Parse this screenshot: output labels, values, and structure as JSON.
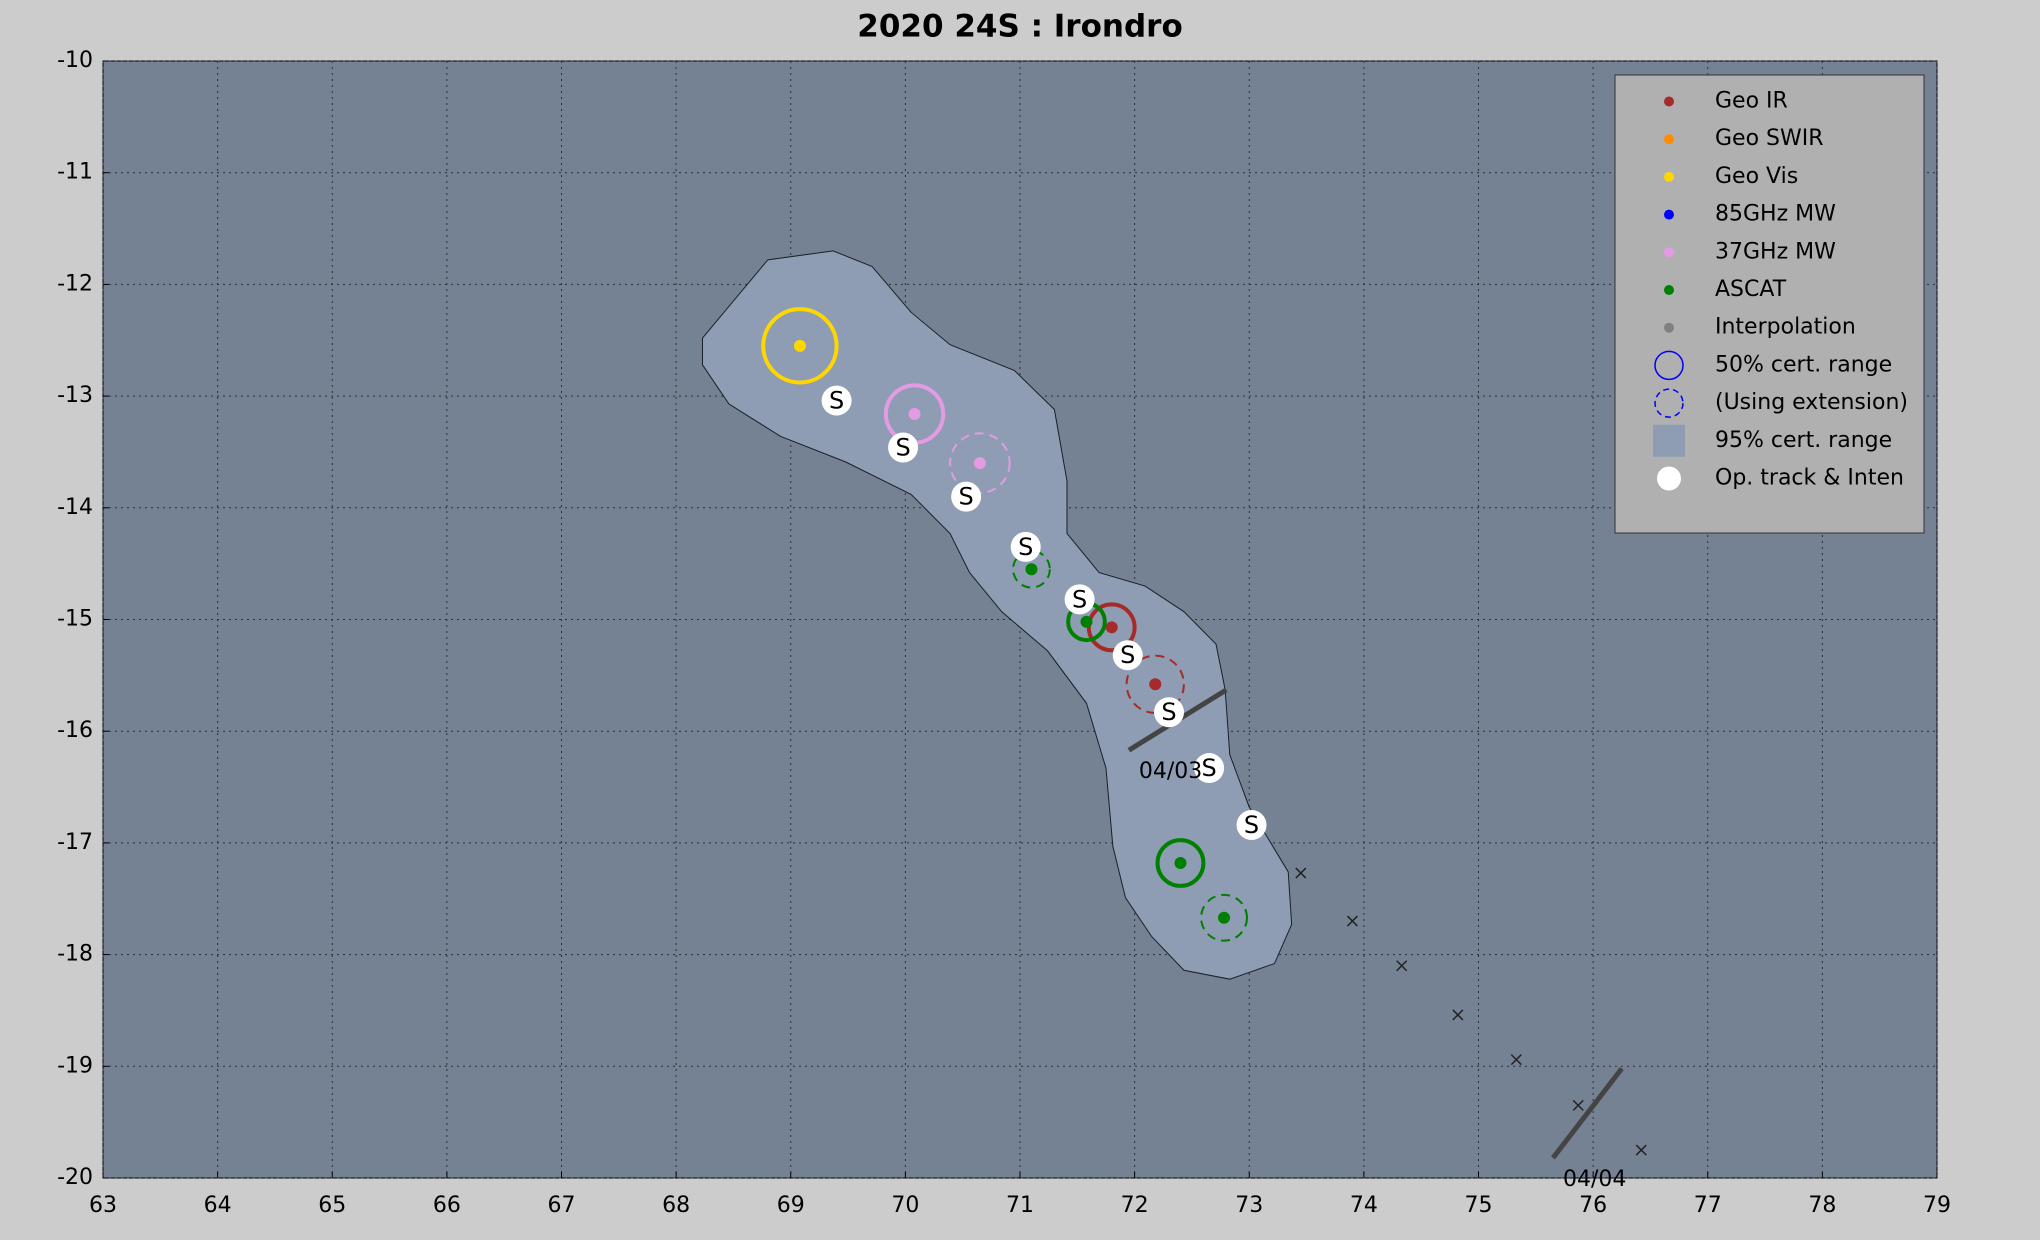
{
  "chart_data": {
    "type": "track",
    "title": "2020  24S :  Irondro",
    "xlim": [
      63,
      79
    ],
    "ylim": [
      -20,
      -10
    ],
    "xticks": [
      63,
      64,
      65,
      66,
      67,
      68,
      69,
      70,
      71,
      72,
      73,
      74,
      75,
      76,
      77,
      78,
      79
    ],
    "yticks": [
      -10,
      -11,
      -12,
      -13,
      -14,
      -15,
      -16,
      -17,
      -18,
      -19,
      -20
    ],
    "grid": true,
    "legend": "upper right",
    "series": [
      {
        "name": "Geo IR",
        "color": "#a52a2a",
        "symbol": "dot",
        "x": [
          71.8,
          72.18
        ],
        "values": [
          -15.07,
          -15.58
        ],
        "radius": [
          0.2,
          0.25
        ],
        "dashed": [
          false,
          true
        ]
      },
      {
        "name": "Geo SWIR",
        "color": "#ff8c00",
        "symbol": "dot",
        "x": [],
        "values": [],
        "radius": [],
        "dashed": []
      },
      {
        "name": "Geo Vis",
        "color": "#ffd700",
        "symbol": "dot",
        "x": [
          69.08
        ],
        "values": [
          -12.55
        ],
        "radius": [
          0.32
        ],
        "dashed": [
          false
        ]
      },
      {
        "name": "85GHz MW",
        "color": "#0000ff",
        "symbol": "dot",
        "x": [],
        "values": [],
        "radius": [],
        "dashed": []
      },
      {
        "name": "37GHz MW",
        "color": "#e39be3",
        "symbol": "dot",
        "x": [
          70.08,
          70.65
        ],
        "values": [
          -13.16,
          -13.6
        ],
        "radius": [
          0.25,
          0.26
        ],
        "dashed": [
          false,
          true
        ]
      },
      {
        "name": "ASCAT",
        "color": "#008000",
        "symbol": "dot",
        "x": [
          71.1,
          71.58,
          72.4,
          72.78
        ],
        "values": [
          -14.55,
          -15.02,
          -17.18,
          -17.67
        ],
        "radius": [
          0.16,
          0.16,
          0.2,
          0.2
        ],
        "dashed": [
          true,
          false,
          false,
          true
        ]
      },
      {
        "name": "Interpolation",
        "color": "#808080",
        "symbol": "dot",
        "x": [],
        "values": [],
        "radius": [],
        "dashed": []
      },
      {
        "name": "50% cert. range",
        "color": "#0000ff",
        "symbol": "circle",
        "x": [],
        "values": []
      },
      {
        "name": "(Using extension)",
        "color": "#0000ff",
        "symbol": "dashed-circle",
        "x": [],
        "values": []
      },
      {
        "name": "95% cert. range",
        "color": "#8e9db3",
        "symbol": "square",
        "x": [
          68.23,
          68.8,
          69.37,
          69.71,
          70.05,
          70.39,
          70.95,
          71.3,
          71.41,
          71.41,
          71.69,
          72.09,
          72.43,
          72.71,
          72.79,
          72.83,
          73.0,
          73.34,
          73.37,
          73.22,
          72.83,
          72.43,
          72.15,
          71.92,
          71.81,
          71.75,
          71.58,
          71.24,
          70.84,
          70.56,
          70.39,
          70.05,
          69.48,
          68.91,
          68.46,
          68.23
        ],
        "values": [
          -12.48,
          -11.78,
          -11.7,
          -11.84,
          -12.25,
          -12.54,
          -12.77,
          -13.12,
          -13.76,
          -14.23,
          -14.58,
          -14.7,
          -14.93,
          -15.22,
          -15.63,
          -16.21,
          -16.68,
          -17.26,
          -17.73,
          -18.08,
          -18.22,
          -18.14,
          -17.84,
          -17.49,
          -17.03,
          -16.33,
          -15.75,
          -15.28,
          -14.93,
          -14.58,
          -14.23,
          -13.88,
          -13.59,
          -13.36,
          -13.07,
          -12.72
        ]
      },
      {
        "name": "Op. track & Inten",
        "color": "#ffffff",
        "symbol": "white-dot",
        "x": [
          69.4,
          69.98,
          70.53,
          71.05,
          71.52,
          71.94,
          72.3,
          72.65,
          73.02
        ],
        "values": [
          -13.04,
          -13.46,
          -13.9,
          -14.35,
          -14.82,
          -15.32,
          -15.83,
          -16.33,
          -16.84
        ],
        "labels": [
          "S",
          "S",
          "S",
          "S",
          "S",
          "S",
          "S",
          "S",
          "S"
        ]
      }
    ],
    "forecast": {
      "x": [
        73.45,
        73.9,
        74.33,
        74.82,
        75.33,
        75.87,
        76.42
      ],
      "y": [
        -17.27,
        -17.7,
        -18.1,
        -18.54,
        -18.94,
        -19.35,
        -19.75
      ]
    },
    "date_lines": [
      {
        "label": "04/03",
        "x": [
          71.95,
          72.8
        ],
        "y": [
          -16.17,
          -15.63
        ]
      },
      {
        "label": "04/04",
        "x": [
          75.65,
          76.25
        ],
        "y": [
          -19.82,
          -19.02
        ]
      }
    ]
  }
}
